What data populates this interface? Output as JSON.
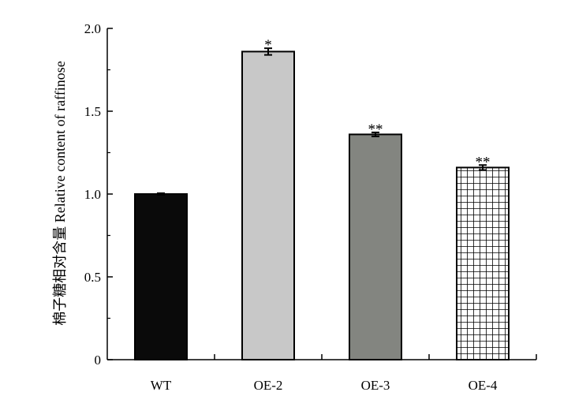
{
  "chart_data": {
    "type": "bar",
    "categories": [
      "WT",
      "OE-2",
      "OE-3",
      "OE-4"
    ],
    "values": [
      1.0,
      1.86,
      1.36,
      1.16
    ],
    "errors": [
      0.005,
      0.02,
      0.012,
      0.015
    ],
    "significance": [
      "",
      "*",
      "**",
      "**"
    ],
    "bar_fills": [
      "#0a0a0a",
      "#c8c8c8",
      "#838580",
      "checker"
    ],
    "ylabel": "棉子糖相对含量 Relative content of raffinose",
    "ylim": [
      0,
      2.0
    ],
    "yticks": [
      0,
      0.5,
      1.0,
      1.5,
      2.0
    ],
    "ytick_labels": [
      "0",
      "0.5",
      "1.0",
      "1.5",
      "2.0"
    ],
    "grid": false,
    "legend": "none"
  }
}
